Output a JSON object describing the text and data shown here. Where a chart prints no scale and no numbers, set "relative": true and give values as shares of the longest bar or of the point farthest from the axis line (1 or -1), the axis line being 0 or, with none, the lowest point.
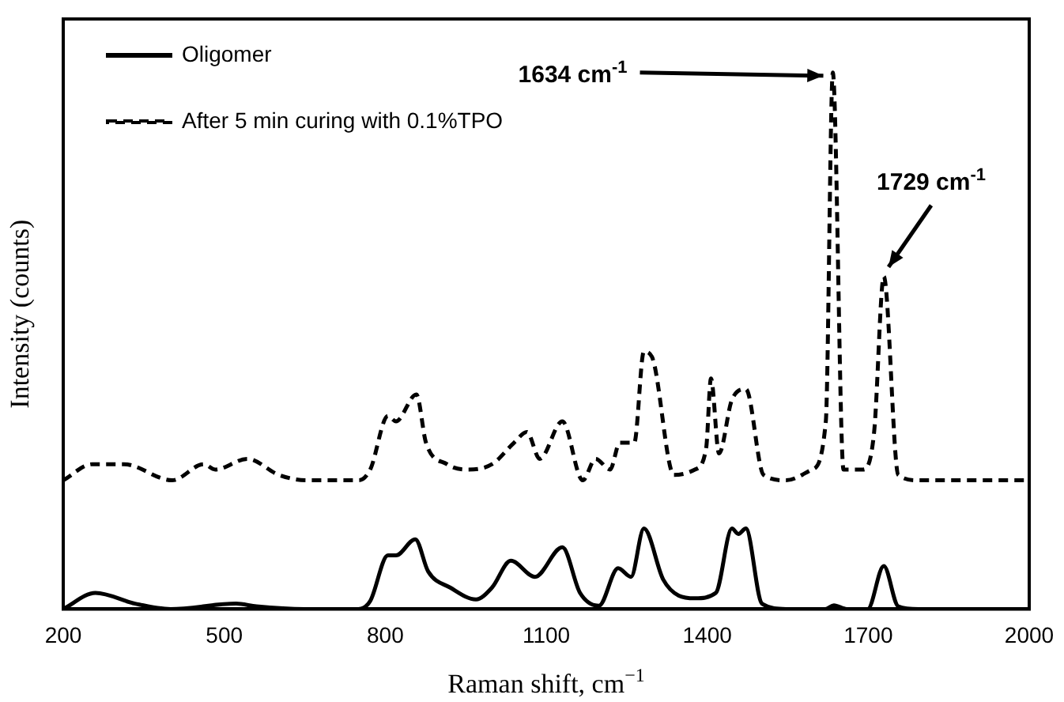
{
  "chart_data": {
    "type": "line",
    "relative": true,
    "xlabel": "Raman shift, cm$^{−1}$",
    "ylabel": "Intensity (counts)",
    "xlim": [
      200,
      2000
    ],
    "xticks": [
      200,
      500,
      800,
      1100,
      1400,
      1700,
      2000
    ],
    "legend": "top left",
    "grid": false,
    "marker": "none",
    "annotations": [
      {
        "text": "1634 cm$^{-1}$",
        "x": 1634,
        "y": 1
      },
      {
        "text": "1729 cm$^{-1}$",
        "x": 1729,
        "y": 0.62
      }
    ],
    "series": [
      {
        "name": "Oligomer",
        "color": "#000000",
        "line_style": "solid",
        "x": [
          200,
          260,
          334,
          400,
          522,
          560,
          650,
          750,
          772,
          805,
          820,
          856,
          880,
          921,
          969,
          999,
          1034,
          1079,
          1130,
          1163,
          1198,
          1234,
          1258,
          1282,
          1318,
          1347,
          1377,
          1416,
          1446,
          1458,
          1472,
          1502,
          1547,
          1620,
          1636,
          1660,
          1699,
          1729,
          1756,
          1794,
          2000
        ],
        "values": [
          0,
          0.03,
          0.01,
          0,
          0.01,
          0.005,
          0,
          0,
          0.015,
          0.1,
          0.1,
          0.13,
          0.07,
          0.04,
          0.018,
          0.04,
          0.09,
          0.06,
          0.115,
          0.03,
          0.006,
          0.076,
          0.06,
          0.15,
          0.055,
          0.025,
          0.02,
          0.03,
          0.15,
          0.14,
          0.15,
          0.01,
          0,
          0,
          0.007,
          0,
          0,
          0.08,
          0.005,
          0,
          0
        ]
      },
      {
        "name": "After 5 min curing with 0.1%TPO",
        "color": "#000000",
        "line_style": "dashed",
        "x": [
          200,
          254,
          313,
          403,
          462,
          483,
          543,
          602,
          653,
          751,
          772,
          805,
          820,
          858,
          876,
          915,
          951,
          999,
          1040,
          1064,
          1088,
          1130,
          1168,
          1192,
          1219,
          1237,
          1264,
          1282,
          1297,
          1338,
          1377,
          1398,
          1407,
          1422,
          1446,
          1472,
          1505,
          1547,
          1595,
          1621,
          1634,
          1654,
          1690,
          1711,
          1729,
          1756,
          1794,
          2000
        ],
        "values": [
          0.24,
          0.27,
          0.27,
          0.24,
          0.27,
          0.26,
          0.28,
          0.25,
          0.24,
          0.24,
          0.26,
          0.36,
          0.35,
          0.4,
          0.31,
          0.27,
          0.26,
          0.27,
          0.31,
          0.33,
          0.28,
          0.35,
          0.24,
          0.28,
          0.26,
          0.31,
          0.31,
          0.48,
          0.47,
          0.25,
          0.26,
          0.3,
          0.43,
          0.29,
          0.39,
          0.41,
          0.25,
          0.24,
          0.26,
          0.35,
          1,
          0.26,
          0.26,
          0.33,
          0.62,
          0.25,
          0.24,
          0.24
        ]
      }
    ]
  }
}
